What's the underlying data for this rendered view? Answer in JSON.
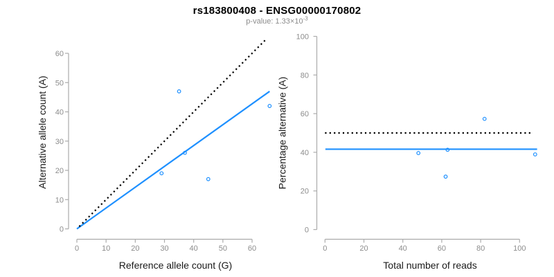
{
  "header": {
    "title": "rs183800408 - ENSG00000170802",
    "subtitle_prefix": "p-value: 1.33×10",
    "subtitle_exponent": "-3"
  },
  "colors": {
    "accent_blue": "#1E90FF",
    "line_black": "#000000",
    "axis_line": "#ABABAB",
    "tick_label": "#8C8C8C",
    "axis_title": "#1A1A1A",
    "subtitle_gray": "#8C8C8C",
    "background": "#FFFFFF"
  },
  "chart_data": [
    {
      "type": "scatter",
      "name": "allele-counts-scatter",
      "xlabel": "Reference allele count (G)",
      "ylabel": "Alternative allele count (A)",
      "xticks": [
        0,
        10,
        20,
        30,
        40,
        50,
        60
      ],
      "yticks": [
        0,
        10,
        20,
        30,
        40,
        50,
        60
      ],
      "xlim": [
        0,
        67
      ],
      "ylim": [
        0,
        66
      ],
      "grid": false,
      "legend": "none",
      "points": [
        [
          29,
          19
        ],
        [
          35,
          47
        ],
        [
          37,
          26
        ],
        [
          45,
          17
        ],
        [
          66,
          42
        ]
      ],
      "lines": [
        {
          "name": "fitted-ratio-line",
          "style": "solid",
          "color": "blue",
          "x1": 0,
          "y1": 0,
          "x2": 66,
          "y2": 47
        },
        {
          "name": "identity-line",
          "style": "dotted",
          "color": "black",
          "x1": 0.8,
          "y1": 0.8,
          "x2": 65,
          "y2": 65
        }
      ]
    },
    {
      "type": "scatter",
      "name": "percentage-vs-coverage-scatter",
      "xlabel": "Total number of reads",
      "ylabel": "Percentage alternative (A)",
      "xticks": [
        0,
        20,
        40,
        60,
        80,
        100
      ],
      "yticks": [
        0,
        20,
        40,
        60,
        80,
        100
      ],
      "xlim": [
        0,
        109
      ],
      "ylim": [
        0,
        100
      ],
      "grid": false,
      "legend": "none",
      "points": [
        [
          48,
          39.6
        ],
        [
          62,
          27.4
        ],
        [
          63,
          41.3
        ],
        [
          82,
          57.3
        ],
        [
          108,
          38.9
        ]
      ],
      "lines": [
        {
          "name": "mean-percentage-line",
          "style": "solid",
          "color": "blue",
          "x1": 0.2,
          "y1": 41.6,
          "x2": 109,
          "y2": 41.6
        },
        {
          "name": "expected-50-percent-line",
          "style": "dotted",
          "color": "black",
          "x1": 0,
          "y1": 50,
          "x2": 106,
          "y2": 50
        }
      ]
    }
  ]
}
